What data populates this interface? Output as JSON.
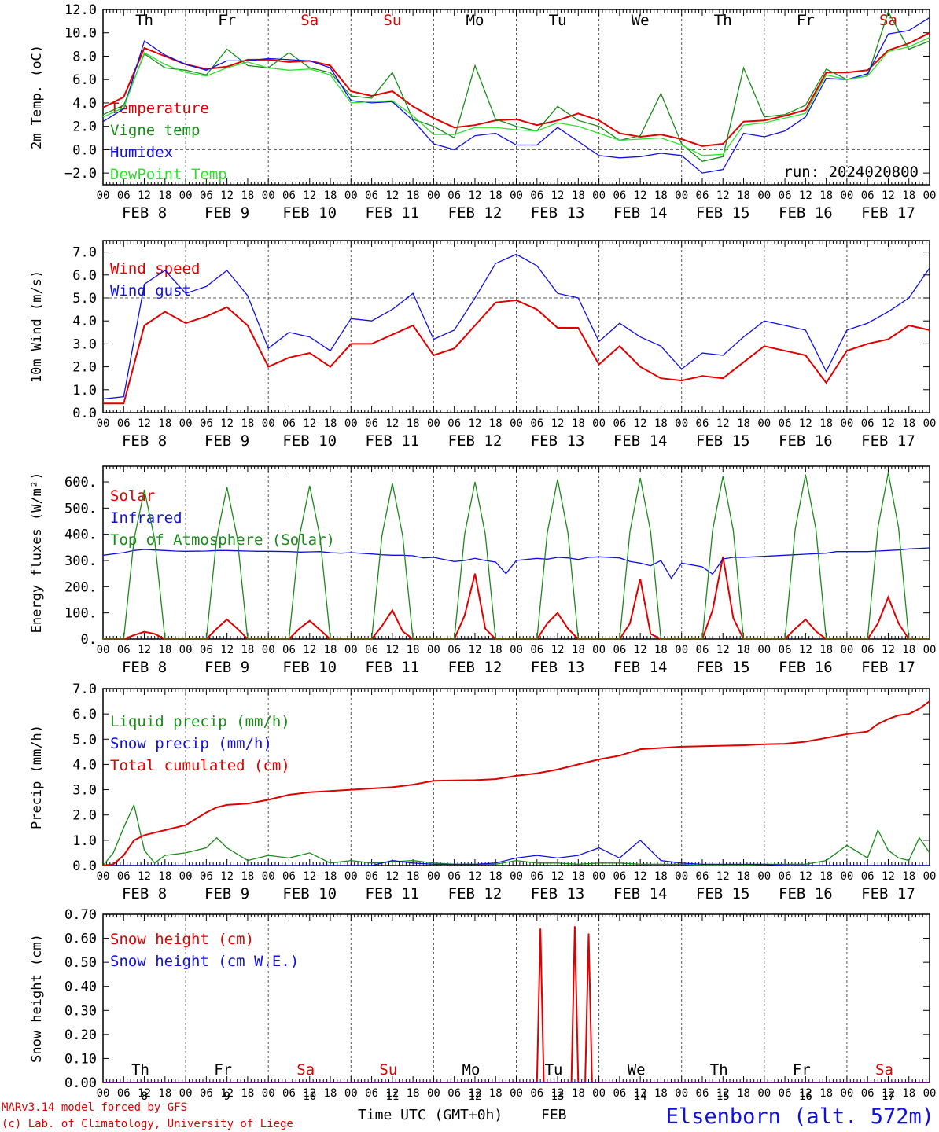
{
  "station_label": "Elsenborn (alt. 572m)",
  "credits": [
    "MARv3.14 model forced by GFS",
    "(c) Lab. of Climatology, University of Liege"
  ],
  "run_label": "run: 2024020800",
  "xaxis": {
    "hour_ticks": [
      "00",
      "06",
      "12",
      "18"
    ],
    "days": [
      "FEB  8",
      "FEB  9",
      "FEB 10",
      "FEB 11",
      "FEB 12",
      "FEB 13",
      "FEB 14",
      "FEB 15",
      "FEB 16",
      "FEB 17"
    ],
    "weekdays": [
      "Th",
      "Fr",
      "Sa",
      "Su",
      "Mo",
      "Tu",
      "We",
      "Th",
      "Fr",
      "Sa"
    ],
    "weekday_colors": [
      "#000000",
      "#000000",
      "#e00000",
      "#e00000",
      "#000000",
      "#000000",
      "#000000",
      "#000000",
      "#000000",
      "#e00000"
    ],
    "day_numbers": [
      "8",
      "9",
      "10",
      "11",
      "12",
      "13",
      "14",
      "15",
      "16",
      "17"
    ],
    "bottom_title": "Time UTC (GMT+0h)",
    "bottom_month": "FEB"
  },
  "colors": {
    "red": "#e00000",
    "green": "#1a8a1a",
    "blue": "#1010e0",
    "lightgreen": "#30e030",
    "axis": "#000000"
  },
  "chart_data": [
    {
      "type": "line",
      "ylabel": "2m Temp. (oC)",
      "ylim": [
        -3,
        12
      ],
      "yticks": [
        "-2.0",
        "0.0",
        "2.0",
        "4.0",
        "6.0",
        "8.0",
        "10.0",
        "12.0"
      ],
      "reference_line": 0,
      "x": [
        0,
        6,
        12,
        18,
        24,
        30,
        36,
        42,
        48,
        54,
        60,
        66,
        72,
        78,
        84,
        90,
        96,
        102,
        108,
        114,
        120,
        126,
        132,
        138,
        144,
        150,
        156,
        162,
        168,
        174,
        180,
        186,
        192,
        198,
        204,
        210,
        216,
        222,
        228,
        234,
        240
      ],
      "series": [
        {
          "name": "Temperature",
          "color": "red",
          "values": [
            3.6,
            4.5,
            8.7,
            8.0,
            7.3,
            6.9,
            7.1,
            7.7,
            7.7,
            7.5,
            7.6,
            7.2,
            5.0,
            4.6,
            5.0,
            3.7,
            2.7,
            1.9,
            2.1,
            2.5,
            2.6,
            2.1,
            2.5,
            3.1,
            2.5,
            1.4,
            1.1,
            1.3,
            0.9,
            0.3,
            0.5,
            2.4,
            2.5,
            2.9,
            3.4,
            6.6,
            6.6,
            6.8,
            8.5,
            9.1,
            10.0
          ]
        },
        {
          "name": "Vigne temp",
          "color": "green",
          "values": [
            3.0,
            3.8,
            8.2,
            7.0,
            6.8,
            6.4,
            8.6,
            7.2,
            7.0,
            8.3,
            7.0,
            6.6,
            4.6,
            4.4,
            6.6,
            2.6,
            2.0,
            1.0,
            7.2,
            2.6,
            2.0,
            1.6,
            3.7,
            2.5,
            2.0,
            0.8,
            1.2,
            4.8,
            0.5,
            -1.0,
            -0.6,
            7.0,
            2.8,
            3.0,
            3.8,
            6.9,
            6.0,
            6.3,
            11.8,
            8.6,
            9.3
          ]
        },
        {
          "name": "Humidex",
          "color": "blue",
          "values": [
            2.4,
            3.5,
            9.3,
            8.1,
            7.3,
            6.8,
            7.6,
            7.6,
            7.8,
            7.7,
            7.6,
            7.0,
            4.2,
            4.0,
            4.1,
            2.5,
            0.5,
            0.0,
            1.2,
            1.4,
            0.4,
            0.4,
            1.9,
            0.7,
            -0.5,
            -0.7,
            -0.6,
            -0.3,
            -0.5,
            -2.0,
            -1.7,
            1.4,
            1.1,
            1.6,
            2.8,
            6.1,
            6.0,
            6.5,
            9.9,
            10.2,
            11.3
          ]
        },
        {
          "name": "DewPoint Temp",
          "color": "lightgreen",
          "values": [
            2.8,
            3.6,
            8.3,
            7.3,
            6.6,
            6.3,
            7.0,
            7.5,
            7.0,
            6.8,
            6.9,
            6.4,
            4.0,
            4.1,
            4.2,
            2.9,
            1.3,
            1.3,
            1.9,
            1.9,
            1.7,
            1.6,
            2.3,
            2.0,
            1.4,
            0.8,
            0.9,
            1.0,
            0.4,
            -0.5,
            -0.4,
            2.1,
            2.3,
            2.7,
            3.1,
            6.4,
            6.0,
            6.3,
            8.4,
            8.8,
            9.6
          ]
        }
      ]
    },
    {
      "type": "line",
      "ylabel": "10m Wind (m/s)",
      "ylim": [
        0,
        7.5
      ],
      "yticks": [
        "0.0",
        "1.0",
        "2.0",
        "3.0",
        "4.0",
        "5.0",
        "6.0",
        "7.0"
      ],
      "reference_line": 5,
      "x": [
        0,
        6,
        12,
        18,
        24,
        30,
        36,
        42,
        48,
        54,
        60,
        66,
        72,
        78,
        84,
        90,
        96,
        102,
        108,
        114,
        120,
        126,
        132,
        138,
        144,
        150,
        156,
        162,
        168,
        174,
        180,
        186,
        192,
        198,
        204,
        210,
        216,
        222,
        228,
        234,
        240
      ],
      "series": [
        {
          "name": "Wind speed",
          "color": "red",
          "values": [
            0.4,
            0.4,
            3.8,
            4.4,
            3.9,
            4.2,
            4.6,
            3.8,
            2.0,
            2.4,
            2.6,
            2.0,
            3.0,
            3.0,
            3.4,
            3.8,
            2.5,
            2.8,
            3.8,
            4.8,
            4.9,
            4.5,
            3.7,
            3.7,
            2.1,
            2.9,
            2.0,
            1.5,
            1.4,
            1.6,
            1.5,
            2.2,
            2.9,
            2.7,
            2.5,
            1.3,
            2.7,
            3.0,
            3.2,
            3.8,
            3.6
          ]
        },
        {
          "name": "Wind gust",
          "color": "blue",
          "values": [
            0.6,
            0.7,
            5.6,
            6.2,
            5.2,
            5.5,
            6.2,
            5.1,
            2.8,
            3.5,
            3.3,
            2.7,
            4.1,
            4.0,
            4.5,
            5.2,
            3.2,
            3.6,
            5.0,
            6.5,
            6.9,
            6.4,
            5.2,
            5.0,
            3.1,
            3.9,
            3.3,
            2.9,
            1.9,
            2.6,
            2.5,
            3.3,
            4.0,
            3.8,
            3.6,
            1.8,
            3.6,
            3.9,
            4.4,
            5.0,
            6.3
          ]
        }
      ]
    },
    {
      "type": "line",
      "ylabel": "Energy fluxes (W/m²)",
      "ylim": [
        0,
        660
      ],
      "yticks": [
        "0.",
        "100.",
        "200.",
        "300.",
        "400.",
        "500.",
        "600."
      ],
      "x": [
        0,
        6,
        9,
        12,
        15,
        18,
        21,
        24,
        30,
        33,
        36,
        39,
        42,
        45,
        48,
        54,
        57,
        60,
        63,
        66,
        69,
        72,
        78,
        81,
        84,
        87,
        90,
        93,
        96,
        102,
        105,
        108,
        111,
        114,
        117,
        120,
        126,
        129,
        132,
        135,
        138,
        141,
        144,
        150,
        153,
        156,
        159,
        162,
        165,
        168,
        174,
        177,
        180,
        183,
        186,
        189,
        192,
        198,
        201,
        204,
        207,
        210,
        213,
        216,
        222,
        225,
        228,
        231,
        234,
        237,
        240
      ],
      "series": [
        {
          "name": "Solar",
          "color": "red",
          "values": [
            0,
            0,
            15,
            28,
            20,
            0,
            0,
            0,
            0,
            40,
            75,
            40,
            0,
            0,
            0,
            0,
            40,
            70,
            35,
            0,
            0,
            0,
            0,
            50,
            110,
            30,
            0,
            0,
            0,
            0,
            90,
            250,
            40,
            0,
            0,
            0,
            0,
            60,
            100,
            40,
            0,
            0,
            0,
            0,
            60,
            230,
            20,
            0,
            0,
            0,
            0,
            110,
            315,
            80,
            0,
            0,
            0,
            0,
            40,
            75,
            30,
            0,
            0,
            0,
            0,
            60,
            160,
            60,
            0,
            0,
            0
          ]
        },
        {
          "name": "Infrared",
          "color": "blue",
          "values": [
            320,
            330,
            338,
            342,
            340,
            338,
            336,
            335,
            336,
            338,
            338,
            337,
            336,
            335,
            335,
            334,
            332,
            333,
            334,
            330,
            328,
            330,
            325,
            322,
            320,
            320,
            318,
            310,
            312,
            296,
            300,
            308,
            300,
            294,
            250,
            300,
            308,
            305,
            312,
            310,
            304,
            312,
            314,
            310,
            296,
            290,
            280,
            300,
            232,
            290,
            276,
            248,
            306,
            312,
            312,
            314,
            316,
            320,
            322,
            324,
            326,
            328,
            334,
            334,
            334,
            336,
            338,
            340,
            344,
            346,
            348
          ]
        },
        {
          "name": "Top of Atmosphere (Solar)",
          "color": "green",
          "values": [
            0,
            0,
            380,
            570,
            380,
            0,
            0,
            0,
            0,
            385,
            580,
            385,
            0,
            0,
            0,
            0,
            390,
            585,
            390,
            0,
            0,
            0,
            0,
            395,
            595,
            395,
            0,
            0,
            0,
            0,
            400,
            600,
            400,
            0,
            0,
            0,
            0,
            405,
            610,
            405,
            0,
            0,
            0,
            0,
            410,
            615,
            410,
            0,
            0,
            0,
            0,
            415,
            622,
            415,
            0,
            0,
            0,
            0,
            420,
            628,
            420,
            0,
            0,
            0,
            0,
            425,
            635,
            425,
            0,
            0,
            0
          ]
        }
      ]
    },
    {
      "type": "line",
      "ylabel": "Precip (mm/h)",
      "ylim": [
        0,
        7
      ],
      "yticks": [
        "0.0",
        "1.0",
        "2.0",
        "3.0",
        "4.0",
        "5.0",
        "6.0",
        "7.0"
      ],
      "x": [
        0,
        3,
        6,
        9,
        12,
        15,
        18,
        24,
        30,
        33,
        36,
        42,
        48,
        54,
        60,
        66,
        72,
        78,
        84,
        90,
        96,
        102,
        108,
        114,
        120,
        126,
        132,
        138,
        144,
        150,
        156,
        162,
        168,
        174,
        180,
        186,
        192,
        198,
        204,
        210,
        216,
        222,
        225,
        228,
        231,
        234,
        237,
        240
      ],
      "series": [
        {
          "name": "Liquid precip (mm/h)",
          "color": "green",
          "values": [
            0,
            0.5,
            1.5,
            2.4,
            0.6,
            0.1,
            0.4,
            0.5,
            0.7,
            1.1,
            0.7,
            0.2,
            0.4,
            0.3,
            0.5,
            0.1,
            0.2,
            0.1,
            0.15,
            0.2,
            0.1,
            0.05,
            0.05,
            0.05,
            0.2,
            0.1,
            0.1,
            0.05,
            0.1,
            0.1,
            0.05,
            0.05,
            0.05,
            0.0,
            0.0,
            0.0,
            0.05,
            0.05,
            0.05,
            0.2,
            0.8,
            0.3,
            1.4,
            0.6,
            0.3,
            0.2,
            1.1,
            0.5
          ]
        },
        {
          "name": "Snow precip (mm/h)",
          "color": "blue",
          "values": [
            0,
            0,
            0,
            0,
            0,
            0,
            0,
            0,
            0,
            0,
            0,
            0,
            0,
            0,
            0,
            0,
            0,
            0,
            0.2,
            0.1,
            0.05,
            0.05,
            0.05,
            0.1,
            0.3,
            0.4,
            0.3,
            0.4,
            0.7,
            0.3,
            1.0,
            0.2,
            0.1,
            0.05,
            0.05,
            0.05,
            0.05,
            0,
            0,
            0,
            0,
            0,
            0,
            0,
            0,
            0,
            0,
            0
          ]
        },
        {
          "name": "Total cumulated (cm)",
          "color": "red",
          "values": [
            0,
            0.05,
            0.4,
            1.0,
            1.2,
            1.3,
            1.4,
            1.6,
            2.1,
            2.3,
            2.4,
            2.45,
            2.6,
            2.8,
            2.9,
            2.95,
            3.0,
            3.05,
            3.1,
            3.2,
            3.35,
            3.37,
            3.38,
            3.42,
            3.55,
            3.65,
            3.8,
            4.0,
            4.2,
            4.35,
            4.6,
            4.65,
            4.7,
            4.72,
            4.74,
            4.76,
            4.8,
            4.82,
            4.9,
            5.05,
            5.2,
            5.3,
            5.6,
            5.8,
            5.95,
            6.0,
            6.2,
            6.5
          ]
        }
      ]
    },
    {
      "type": "line",
      "ylabel": "Snow height (cm)",
      "ylim": [
        0,
        0.7
      ],
      "yticks": [
        "0.00",
        "0.10",
        "0.20",
        "0.30",
        "0.40",
        "0.50",
        "0.60",
        "0.70"
      ],
      "x": [
        0,
        126,
        127,
        128,
        136,
        137,
        138,
        140,
        141,
        142,
        240
      ],
      "series": [
        {
          "name": "Snow height (cm)",
          "color": "red",
          "values": [
            0,
            0,
            0.64,
            0,
            0,
            0.65,
            0,
            0,
            0.62,
            0,
            0
          ]
        },
        {
          "name": "Snow height (cm W.E.)",
          "color": "blue",
          "values": [
            0,
            0,
            0,
            0,
            0,
            0,
            0,
            0,
            0,
            0,
            0
          ]
        }
      ]
    }
  ]
}
